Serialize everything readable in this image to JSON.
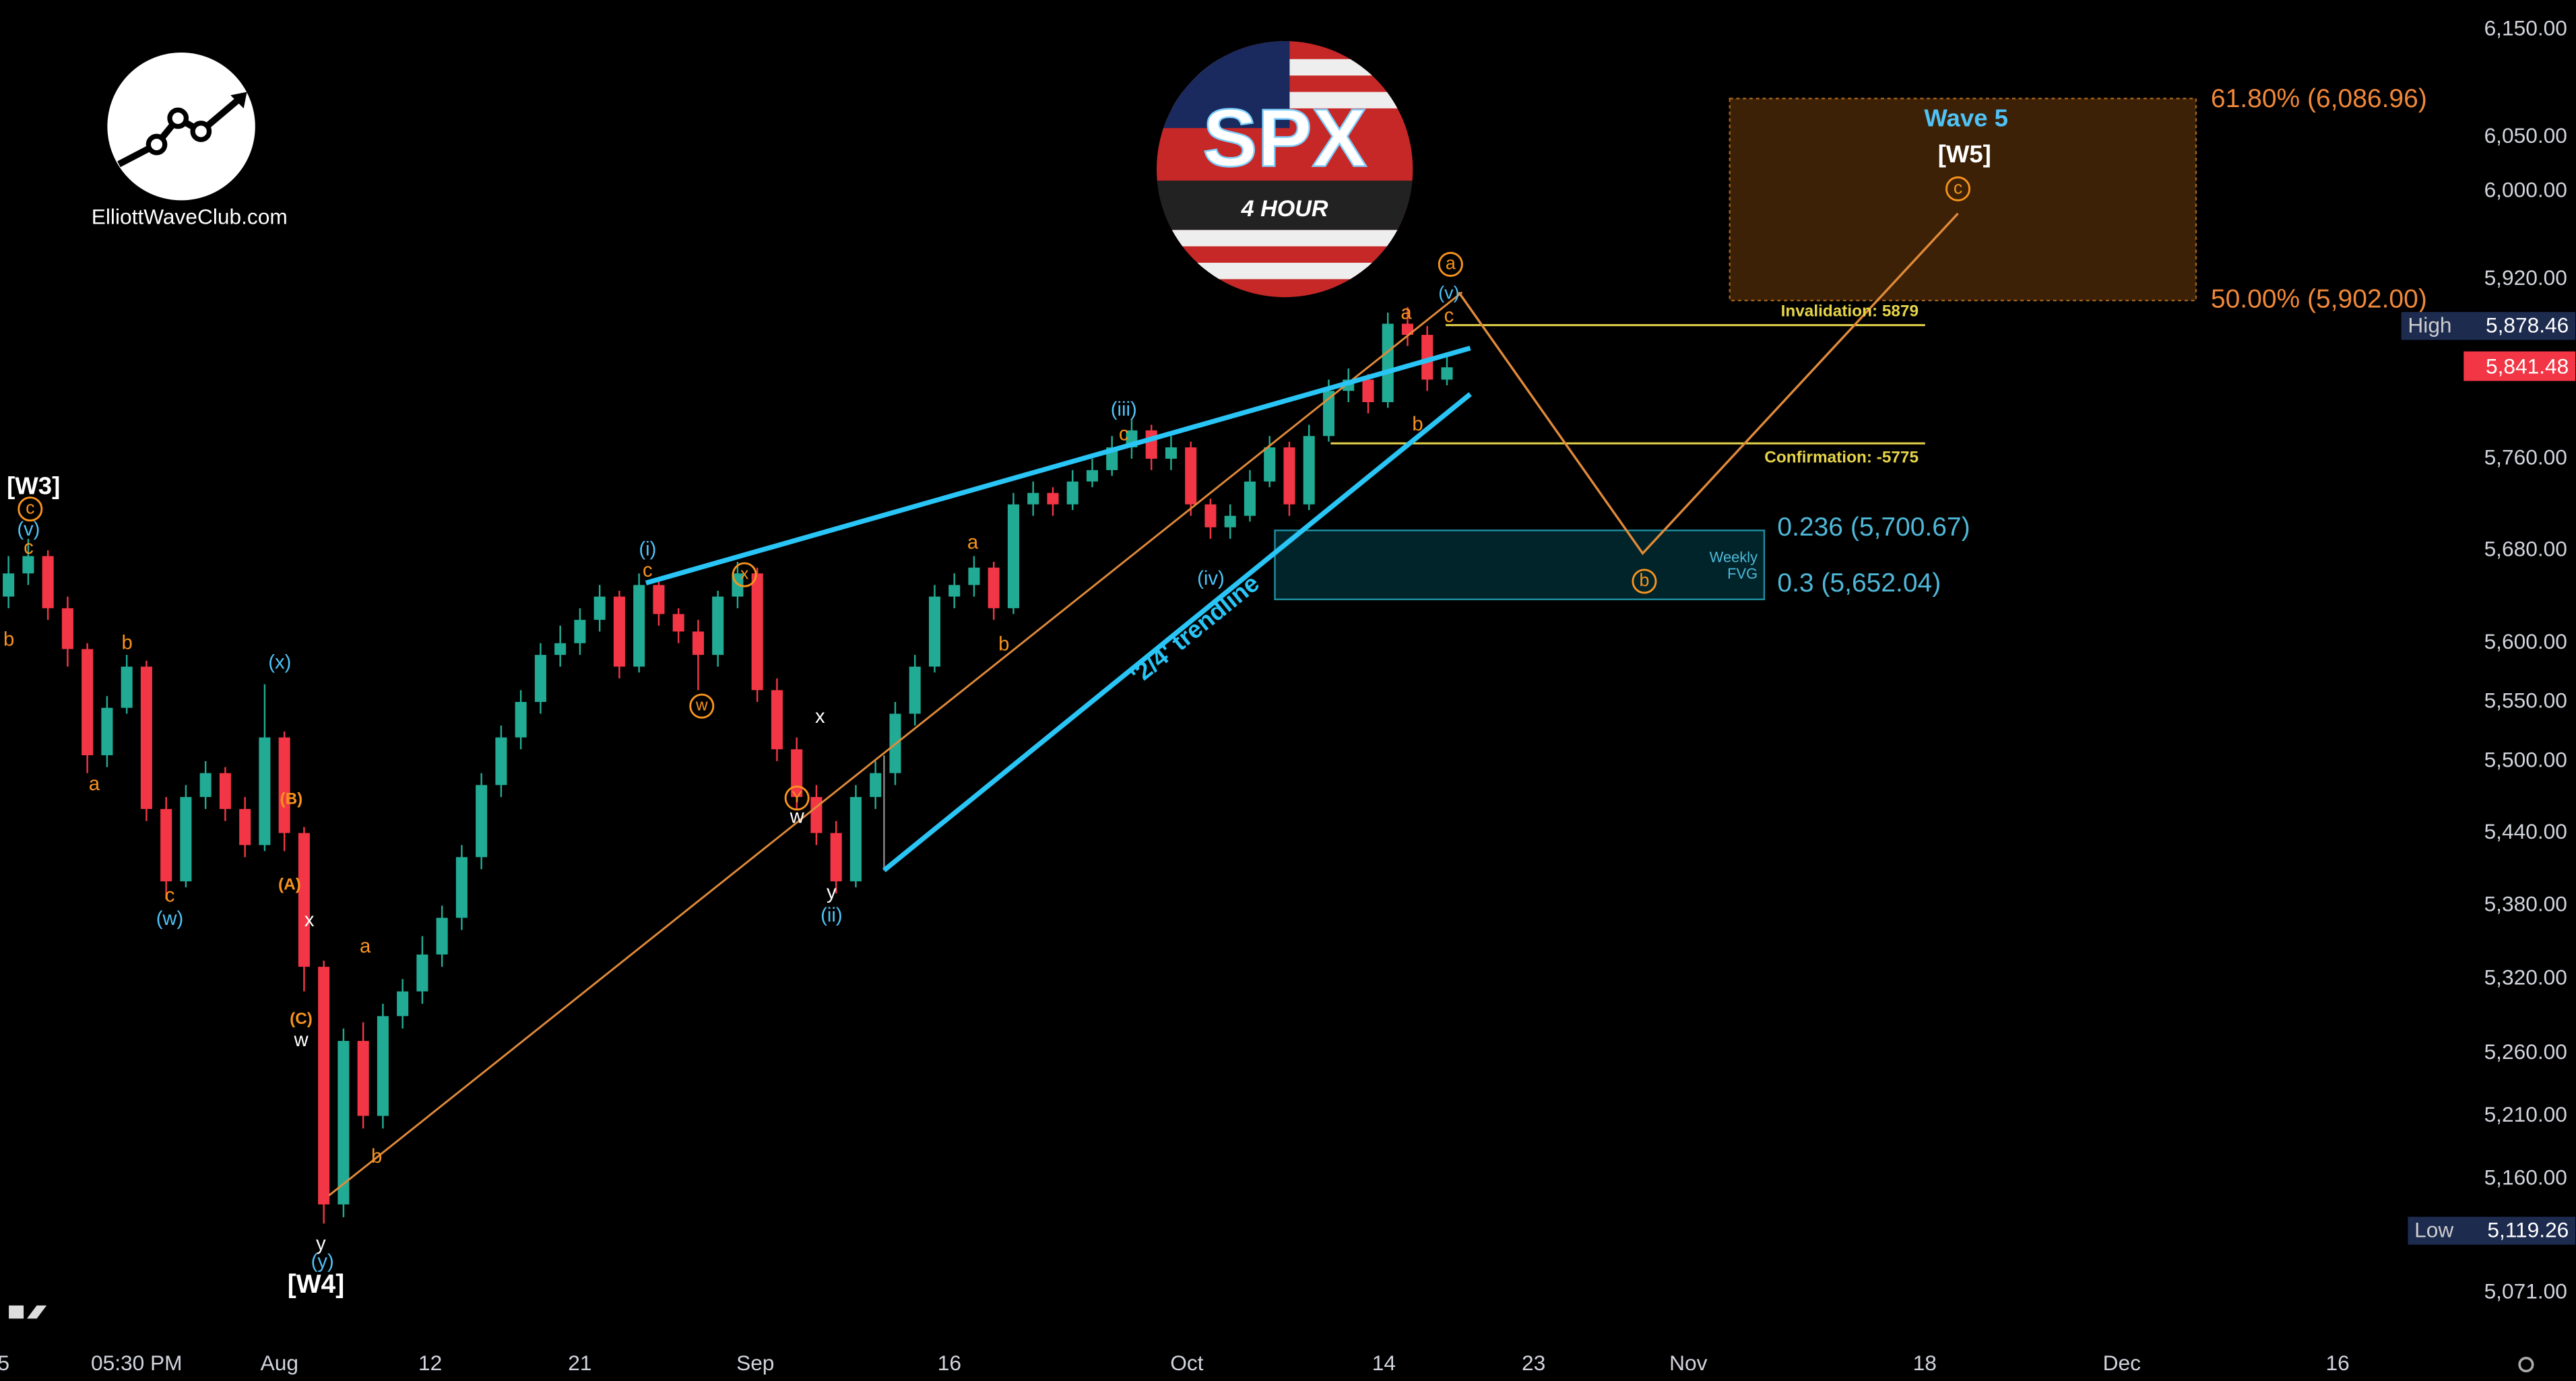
{
  "chart_data": {
    "type": "candlestick",
    "log": true,
    "grid": false,
    "up_color": "#22ab94",
    "down_color": "#f23645",
    "xlim": [
      -0.4,
      124.6
    ],
    "ylim": [
      5036,
      6178
    ],
    "xticks": [
      {
        "value": -0.25,
        "label": "5"
      },
      {
        "value": 6.5,
        "label": "05:30 PM"
      },
      {
        "value": 13.75,
        "label": "Aug"
      },
      {
        "value": 21.4,
        "label": "12"
      },
      {
        "value": 29,
        "label": "21"
      },
      {
        "value": 37.9,
        "label": "Sep"
      },
      {
        "value": 47.75,
        "label": "16"
      },
      {
        "value": 59.8,
        "label": "Oct"
      },
      {
        "value": 69.8,
        "label": "14"
      },
      {
        "value": 77.4,
        "label": "23"
      },
      {
        "value": 85.25,
        "label": "Nov"
      },
      {
        "value": 97.25,
        "label": "18"
      },
      {
        "value": 107.25,
        "label": "Dec"
      },
      {
        "value": 118.2,
        "label": "16"
      }
    ],
    "yticks": [
      {
        "value": 6150,
        "label": "6,150.00"
      },
      {
        "value": 6050,
        "label": "6,050.00"
      },
      {
        "value": 6000,
        "label": "6,000.00"
      },
      {
        "value": 5920,
        "label": "5,920.00"
      },
      {
        "value": 5760,
        "label": "5,760.00"
      },
      {
        "value": 5680,
        "label": "5,680.00"
      },
      {
        "value": 5600,
        "label": "5,600.00"
      },
      {
        "value": 5550,
        "label": "5,550.00"
      },
      {
        "value": 5500,
        "label": "5,500.00"
      },
      {
        "value": 5440,
        "label": "5,440.00"
      },
      {
        "value": 5380,
        "label": "5,380.00"
      },
      {
        "value": 5320,
        "label": "5,320.00"
      },
      {
        "value": 5260,
        "label": "5,260.00"
      },
      {
        "value": 5210,
        "label": "5,210.00"
      },
      {
        "value": 5160,
        "label": "5,160.00"
      },
      {
        "value": 5071,
        "label": "5,071.00"
      }
    ],
    "x": [
      0,
      1,
      2,
      3,
      4,
      5,
      6,
      7,
      8,
      9,
      10,
      11,
      12,
      13,
      14,
      15,
      16,
      17,
      18,
      19,
      20,
      21,
      22,
      23,
      24,
      25,
      26,
      27,
      28,
      29,
      30,
      31,
      32,
      33,
      34,
      35,
      36,
      37,
      38,
      39,
      40,
      41,
      42,
      43,
      44,
      45,
      46,
      47,
      48,
      49,
      50,
      51,
      52,
      53,
      54,
      55,
      56,
      57,
      58,
      59,
      60,
      61,
      62,
      63,
      64,
      65,
      66,
      67,
      68,
      69,
      70,
      71,
      72,
      73
    ],
    "open": [
      5640,
      5660,
      5675,
      5630,
      5595,
      5505,
      5545,
      5580,
      5460,
      5400,
      5470,
      5490,
      5460,
      5430,
      5520,
      5440,
      5330,
      5140,
      5270,
      5210,
      5290,
      5310,
      5340,
      5370,
      5420,
      5480,
      5520,
      5550,
      5590,
      5600,
      5620,
      5640,
      5580,
      5650,
      5625,
      5610,
      5590,
      5640,
      5660,
      5560,
      5510,
      5470,
      5440,
      5400,
      5470,
      5490,
      5540,
      5580,
      5640,
      5650,
      5665,
      5630,
      5720,
      5730,
      5720,
      5740,
      5750,
      5770,
      5785,
      5760,
      5770,
      5720,
      5700,
      5710,
      5740,
      5770,
      5720,
      5780,
      5820,
      5830,
      5810,
      5880,
      5870,
      5830
    ],
    "high": [
      5675,
      5690,
      5680,
      5640,
      5600,
      5555,
      5590,
      5585,
      5470,
      5480,
      5500,
      5495,
      5470,
      5565,
      5525,
      5445,
      5335,
      5280,
      5285,
      5300,
      5320,
      5355,
      5380,
      5430,
      5490,
      5530,
      5560,
      5600,
      5615,
      5630,
      5650,
      5645,
      5660,
      5655,
      5630,
      5620,
      5645,
      5670,
      5665,
      5570,
      5520,
      5480,
      5450,
      5480,
      5500,
      5550,
      5590,
      5650,
      5660,
      5675,
      5670,
      5730,
      5740,
      5735,
      5750,
      5760,
      5780,
      5795,
      5790,
      5780,
      5775,
      5725,
      5720,
      5750,
      5780,
      5775,
      5790,
      5830,
      5840,
      5835,
      5890,
      5895,
      5878,
      5850
    ],
    "low": [
      5630,
      5650,
      5620,
      5580,
      5490,
      5495,
      5540,
      5450,
      5385,
      5395,
      5460,
      5450,
      5420,
      5425,
      5425,
      5310,
      5125,
      5130,
      5200,
      5200,
      5280,
      5300,
      5330,
      5360,
      5410,
      5470,
      5510,
      5540,
      5580,
      5590,
      5610,
      5570,
      5575,
      5615,
      5600,
      5560,
      5580,
      5630,
      5550,
      5500,
      5460,
      5430,
      5390,
      5395,
      5460,
      5480,
      5530,
      5575,
      5630,
      5640,
      5620,
      5625,
      5710,
      5710,
      5715,
      5735,
      5745,
      5760,
      5750,
      5750,
      5710,
      5690,
      5690,
      5705,
      5735,
      5710,
      5715,
      5775,
      5810,
      5800,
      5805,
      5860,
      5820,
      5825
    ],
    "close": [
      5660,
      5675,
      5630,
      5595,
      5505,
      5545,
      5580,
      5460,
      5400,
      5470,
      5490,
      5460,
      5430,
      5520,
      5440,
      5330,
      5140,
      5270,
      5210,
      5290,
      5310,
      5340,
      5370,
      5420,
      5480,
      5520,
      5550,
      5590,
      5600,
      5620,
      5640,
      5580,
      5650,
      5625,
      5610,
      5590,
      5640,
      5660,
      5560,
      5510,
      5470,
      5440,
      5400,
      5470,
      5490,
      5540,
      5580,
      5640,
      5650,
      5665,
      5630,
      5720,
      5730,
      5720,
      5740,
      5750,
      5770,
      5785,
      5760,
      5770,
      5720,
      5700,
      5710,
      5740,
      5770,
      5720,
      5780,
      5820,
      5830,
      5810,
      5880,
      5870,
      5830,
      5841
    ],
    "wave_labels": [
      "[W3]",
      "c",
      "(v)",
      "c",
      "b",
      "b",
      "a",
      "(x)",
      "c",
      "(w)",
      "(B)",
      "(A)",
      "x",
      "(C)",
      "w",
      "a",
      "b",
      "y",
      "(y)",
      "[W4]",
      "(i)",
      "c",
      "x",
      "w",
      "x",
      "Y",
      "w",
      "y",
      "(ii)",
      "a",
      "b",
      "(iii)",
      "c",
      "(iv)",
      "a",
      "(v)",
      "a",
      "c",
      "b",
      "Wave 5",
      "[W5]",
      "c",
      "b"
    ],
    "trendline_label": "'2/4' trendline",
    "levels": {
      "invalidation": "Invalidation: 5879",
      "confirmation": "Confirmation: -5775",
      "fib_618": "61.80% (6,086.96)",
      "fib_50": "50.00% (5,902.00)",
      "fib_0236": "0.236 (5,700.67)",
      "fib_03": "0.3 (5,652.04)",
      "fvg": [
        "Weekly",
        "FVG"
      ]
    },
    "price_labels": {
      "high_tag": "High",
      "high": "5,878.46",
      "last": "5,841.48",
      "low_tag": "Low",
      "low": "5,119.26"
    },
    "logo": {
      "site": "ElliottWaveClub.com",
      "symbol": "SPX",
      "timeframe": "4 HOUR"
    }
  }
}
